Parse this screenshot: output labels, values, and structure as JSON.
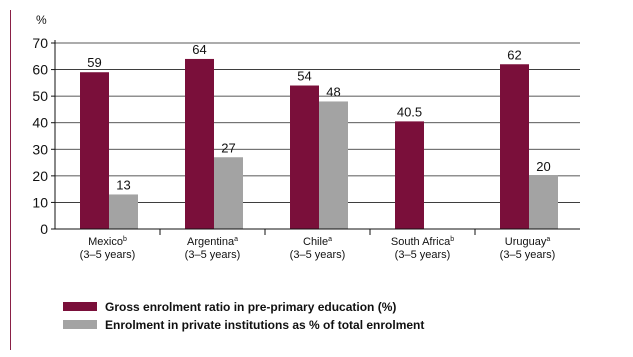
{
  "chart_data": {
    "type": "bar",
    "ylabel": "%",
    "ylim": [
      0,
      70
    ],
    "yticks": [
      0,
      10,
      20,
      30,
      40,
      50,
      60,
      70
    ],
    "categories": [
      {
        "name": "Mexico",
        "sup": "b",
        "sub": "(3–5 years)"
      },
      {
        "name": "Argentina",
        "sup": "a",
        "sub": "(3–5 years)"
      },
      {
        "name": "Chile",
        "sup": "a",
        "sub": "(3–5 years)"
      },
      {
        "name": "South Africa",
        "sup": "b",
        "sub": "(3–5 years)"
      },
      {
        "name": "Uruguay",
        "sup": "a",
        "sub": "(3–5 years)"
      }
    ],
    "series": [
      {
        "name": "Gross enrolment ratio in pre-primary education (%)",
        "color": "#7a0f3a",
        "values": [
          59,
          64,
          54,
          40.5,
          62
        ],
        "labels": [
          "59",
          "64",
          "54",
          "40.5",
          "62"
        ]
      },
      {
        "name": "Enrolment in private institutions as % of total enrolment",
        "color": "#a3a3a3",
        "values": [
          13,
          27,
          48,
          null,
          20
        ],
        "labels": [
          "13",
          "27",
          "48",
          "",
          "20"
        ]
      }
    ],
    "grid": true,
    "legend_position": "bottom-left"
  }
}
